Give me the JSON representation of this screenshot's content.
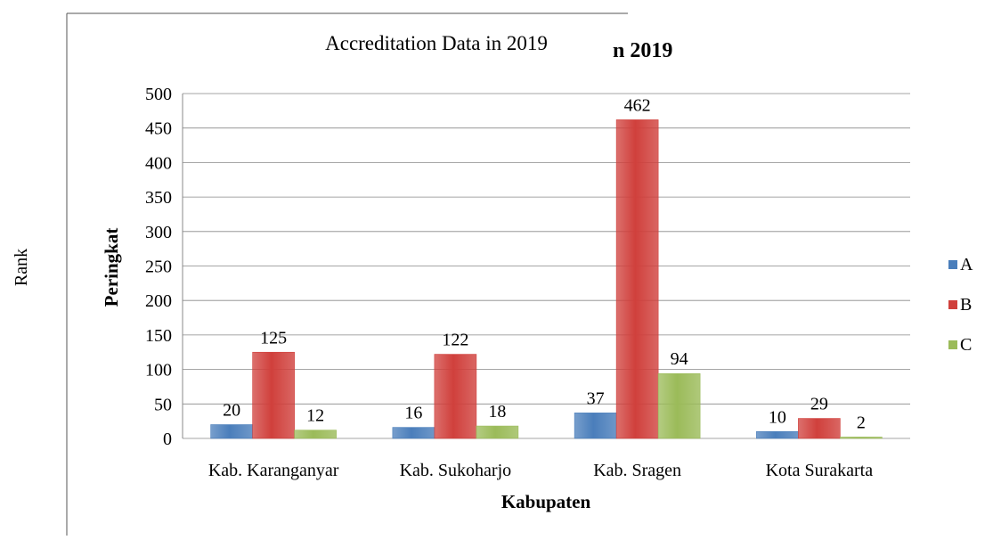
{
  "side_label": "Rank",
  "chart_data": {
    "type": "bar",
    "title": "Accreditation Data in 2019",
    "original_title_fragment": "n 2019",
    "x_label": "Kabupaten",
    "y_label": "Peringkat",
    "categories": [
      "Kab. Karanganyar",
      "Kab. Sukoharjo",
      "Kab. Sragen",
      "Kota Surakarta"
    ],
    "series": [
      {
        "name": "A",
        "color": "#4a7ebb",
        "values": [
          20,
          16,
          37,
          10
        ]
      },
      {
        "name": "B",
        "color": "#d0403c",
        "values": [
          125,
          122,
          462,
          29
        ]
      },
      {
        "name": "C",
        "color": "#9bbb59",
        "values": [
          12,
          18,
          94,
          2
        ]
      }
    ],
    "ylim": [
      0,
      500
    ],
    "yticks": [
      0,
      50,
      100,
      150,
      200,
      250,
      300,
      350,
      400,
      450,
      500
    ],
    "grid": true,
    "legend": "right"
  }
}
